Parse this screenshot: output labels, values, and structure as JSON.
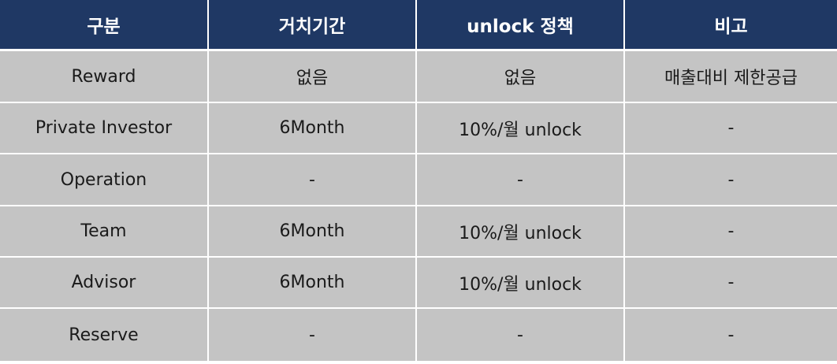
{
  "table": {
    "headers": [
      "구분",
      "거치기간",
      "unlock 정책",
      "비고"
    ],
    "rows": [
      [
        "Reward",
        "없음",
        "없음",
        "매출대비 제한공급"
      ],
      [
        "Private Investor",
        "6Month",
        "10%/월 unlock",
        "-"
      ],
      [
        "Operation",
        "-",
        "-",
        "-"
      ],
      [
        "Team",
        "6Month",
        "10%/월 unlock",
        "-"
      ],
      [
        "Advisor",
        "6Month",
        "10%/월 unlock",
        "-"
      ],
      [
        "Reserve",
        "-",
        "-",
        "-"
      ]
    ]
  },
  "colors": {
    "header_bg": "#1f3864",
    "header_text": "#ffffff",
    "cell_bg": "#c4c4c4",
    "cell_text": "#1a1a1a",
    "grid_line": "#ffffff"
  }
}
